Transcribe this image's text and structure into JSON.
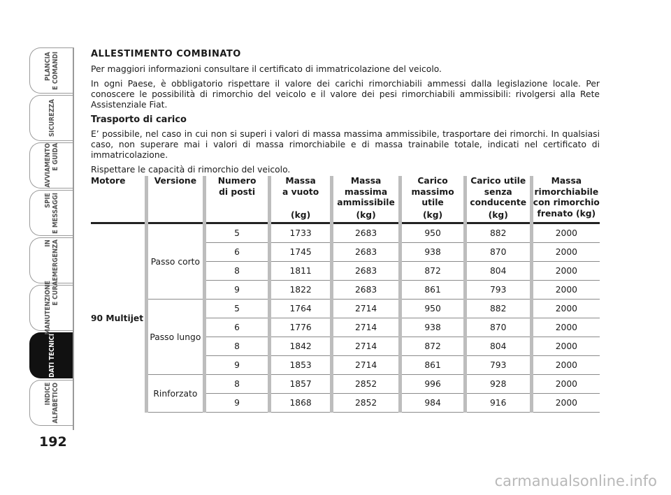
{
  "sidebar": {
    "active_tab": 6,
    "tabs": [
      [
        "PLANCIA",
        "E COMANDI"
      ],
      [
        "SICUREZZA"
      ],
      [
        "AVVIAMENTO",
        "E GUIDA"
      ],
      [
        "SPIE",
        "E MESSAGGI"
      ],
      [
        "IN",
        "EMERGENZA"
      ],
      [
        "MANUTENZIONE",
        "E CURA"
      ],
      [
        "DATI TECNICI"
      ],
      [
        "INDICE",
        "ALFABETICO"
      ]
    ]
  },
  "page_number": "192",
  "section": {
    "title": "ALLESTIMENTO COMBINATO",
    "paragraphs": [
      "Per maggiori informazioni consultare il certificato di immatricolazione del veicolo.",
      "In ogni Paese, è obbligatorio rispettare il valore dei carichi rimorchiabili ammessi dalla legislazione locale. Per conoscere le possibilità di rimorchio del veicolo e il valore dei pesi rimorchiabili ammissibili: rivolgersi alla Rete Assistenziale Fiat."
    ],
    "subtitle": "Trasporto di carico",
    "paragraphs2": [
      "E’ possibile, nel caso in cui non si superi i valori di massa massima ammissibile, trasportare dei rimorchi. In qualsiasi caso, non superare mai i valori di massa rimorchiabile e di massa trainabile totale, indicati nel certificato di immatricolazione.",
      "Rispettare le capacità di rimorchio del veicolo."
    ]
  },
  "table": {
    "headers": [
      {
        "lines": [
          "Motore"
        ]
      },
      {
        "lines": [
          "Versione"
        ]
      },
      {
        "lines": [
          "Numero",
          "di posti"
        ]
      },
      {
        "lines": [
          "Massa",
          "a vuoto"
        ],
        "unit": "(kg)"
      },
      {
        "lines": [
          "Massa",
          "massima",
          "ammissibile"
        ],
        "unit": "(kg)"
      },
      {
        "lines": [
          "Carico",
          "massimo",
          "utile"
        ],
        "unit": "(kg)"
      },
      {
        "lines": [
          "Carico utile",
          "senza",
          "conducente"
        ],
        "unit": "(kg)"
      },
      {
        "lines": [
          "Massa",
          "rimorchiabile",
          "con rimorchio",
          "frenato (kg)"
        ]
      }
    ],
    "engine": "90 Multijet",
    "groups": [
      {
        "version": "Passo corto",
        "rows": [
          [
            5,
            1733,
            2683,
            950,
            882,
            2000
          ],
          [
            6,
            1745,
            2683,
            938,
            870,
            2000
          ],
          [
            8,
            1811,
            2683,
            872,
            804,
            2000
          ],
          [
            9,
            1822,
            2683,
            861,
            793,
            2000
          ]
        ]
      },
      {
        "version": "Passo lungo",
        "rows": [
          [
            5,
            1764,
            2714,
            950,
            882,
            2000
          ],
          [
            6,
            1776,
            2714,
            938,
            870,
            2000
          ],
          [
            8,
            1842,
            2714,
            872,
            804,
            2000
          ],
          [
            9,
            1853,
            2714,
            861,
            793,
            2000
          ]
        ]
      },
      {
        "version": "Rinforzato",
        "rows": [
          [
            8,
            1857,
            2852,
            996,
            928,
            2000
          ],
          [
            9,
            1868,
            2852,
            984,
            916,
            2000
          ]
        ]
      }
    ]
  },
  "watermark": "carmanualsonline.info"
}
